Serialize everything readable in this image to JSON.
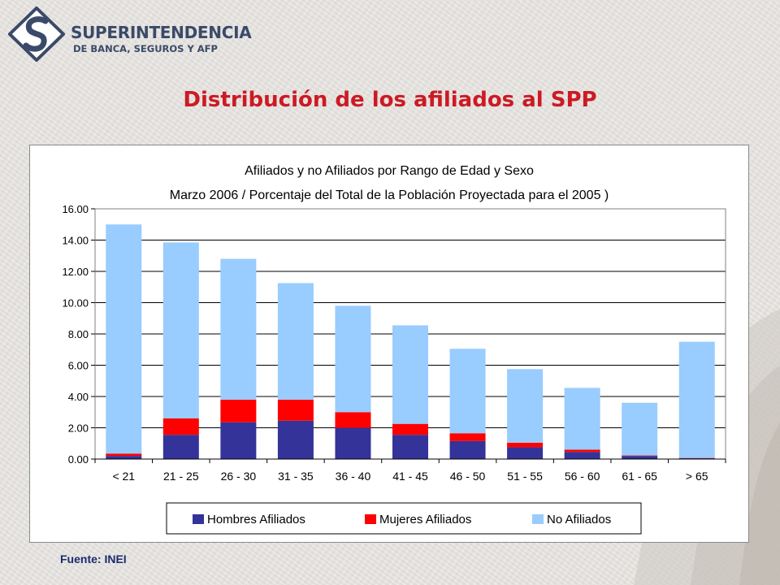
{
  "logo": {
    "line1": "SUPERINTENDENCIA",
    "line2": "DE BANCA, SEGUROS Y AFP"
  },
  "slide": {
    "title": "Distribución de los afiliados al SPP",
    "source": "Fuente: INEI"
  },
  "chart_data": {
    "type": "bar",
    "stacked": true,
    "title": "Afiliados y no Afiliados por Rango de Edad y Sexo",
    "subtitle": "Marzo 2006 / Porcentaje del Total de la Población Proyectada para el 2005 )",
    "xlabel": "",
    "ylabel": "",
    "ylim": [
      0,
      16
    ],
    "yticks": [
      "0.00",
      "2.00",
      "4.00",
      "6.00",
      "8.00",
      "10.00",
      "12.00",
      "14.00",
      "16.00"
    ],
    "grid": true,
    "legend_position": "bottom",
    "categories": [
      "< 21",
      "21 - 25",
      "26 - 30",
      "31 - 35",
      "36 - 40",
      "41 - 45",
      "46 - 50",
      "51 - 55",
      "56 - 60",
      "61 - 65",
      "> 65"
    ],
    "series": [
      {
        "name": "Hombres Afiliados",
        "color": "#333399",
        "values": [
          0.2,
          1.55,
          2.35,
          2.45,
          2.0,
          1.55,
          1.15,
          0.75,
          0.45,
          0.2,
          0.05
        ]
      },
      {
        "name": "Mujeres Afiliados",
        "color": "#ff0000",
        "values": [
          0.15,
          1.05,
          1.45,
          1.35,
          1.0,
          0.7,
          0.5,
          0.3,
          0.15,
          0.03,
          0.02
        ]
      },
      {
        "name": "No Afiliados",
        "color": "#99ccff",
        "values": [
          14.65,
          11.25,
          9.0,
          7.45,
          6.8,
          6.3,
          5.4,
          4.7,
          3.95,
          3.37,
          7.43
        ]
      }
    ]
  }
}
